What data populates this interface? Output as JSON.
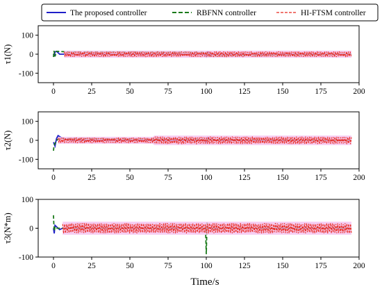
{
  "legend": {
    "entries": [
      {
        "label": "The proposed controller",
        "color": "#1f1fc8",
        "style": "solid"
      },
      {
        "label": "RBFNN controller",
        "color": "#1a7a1a",
        "style": "dashed"
      },
      {
        "label": "HI-FTSM controller",
        "color": "#e8261a",
        "style": "dashed"
      }
    ]
  },
  "chart_data": [
    {
      "type": "line",
      "ylabel": "τ1(N)",
      "xlim": [
        -10,
        200
      ],
      "ylim": [
        -150,
        150
      ],
      "xticks": [
        0,
        25,
        50,
        75,
        100,
        125,
        150,
        175,
        200
      ],
      "yticks": [
        -100,
        0,
        100
      ],
      "series": [
        {
          "name": "The proposed controller",
          "color": "#1f1fc8",
          "x": [
            0,
            0.5,
            1,
            2,
            3,
            4,
            99,
            100,
            101,
            102,
            103,
            104,
            195
          ],
          "y": [
            0,
            -12,
            12,
            15,
            8,
            0,
            0,
            -12,
            12,
            8,
            -5,
            0,
            0
          ]
        },
        {
          "name": "RBFNN controller",
          "color": "#1a7a1a",
          "x": [
            0,
            0.3,
            1,
            2,
            10,
            100,
            101,
            195
          ],
          "y": [
            -15,
            18,
            -12,
            15,
            12,
            10,
            -10,
            0
          ]
        },
        {
          "name": "HI-FTSM controller",
          "color": "#e8261a",
          "envelope": [
            [
              7,
              -15,
              15
            ],
            [
              195,
              -15,
              15
            ]
          ]
        }
      ]
    },
    {
      "type": "line",
      "ylabel": "τ2(N)",
      "xlim": [
        -10,
        200
      ],
      "ylim": [
        -150,
        150
      ],
      "xticks": [
        0,
        25,
        50,
        75,
        100,
        125,
        150,
        175,
        200
      ],
      "yticks": [
        -100,
        0,
        100
      ],
      "series": [
        {
          "name": "The proposed controller",
          "color": "#1f1fc8",
          "x": [
            0,
            1,
            2,
            3,
            5,
            8,
            12,
            99,
            100,
            101,
            103,
            106,
            195
          ],
          "y": [
            -10,
            -30,
            10,
            25,
            15,
            5,
            0,
            0,
            -10,
            15,
            5,
            0,
            0
          ]
        },
        {
          "name": "RBFNN controller",
          "color": "#1a7a1a",
          "x": [
            0,
            0.3,
            1,
            2,
            4,
            195
          ],
          "y": [
            -55,
            -30,
            -15,
            0,
            10,
            0
          ]
        },
        {
          "name": "HI-FTSM controller",
          "color": "#e8261a",
          "envelope": [
            [
              3,
              -15,
              15
            ],
            [
              65,
              -15,
              15
            ],
            [
              66,
              -20,
              20
            ],
            [
              195,
              -20,
              20
            ]
          ]
        }
      ]
    },
    {
      "type": "line",
      "ylabel": "τ3(N*m)",
      "xlim": [
        -10,
        200
      ],
      "ylim": [
        -100,
        100
      ],
      "xticks": [
        0,
        25,
        50,
        75,
        100,
        125,
        150,
        175,
        200
      ],
      "yticks": [
        -100,
        0,
        100
      ],
      "series": [
        {
          "name": "The proposed controller",
          "color": "#1f1fc8",
          "x": [
            0,
            0.5,
            1,
            2,
            4,
            6,
            195
          ],
          "y": [
            0,
            -18,
            10,
            5,
            -5,
            0,
            0
          ]
        },
        {
          "name": "RBFNN controller",
          "color": "#1a7a1a",
          "x": [
            0,
            0.2,
            0.5,
            1,
            2,
            99.5,
            100,
            100.5,
            101,
            195
          ],
          "y": [
            45,
            20,
            -10,
            5,
            0,
            0,
            -90,
            20,
            0,
            0
          ]
        },
        {
          "name": "HI-FTSM controller",
          "color": "#e8261a",
          "envelope": [
            [
              6,
              -18,
              18
            ],
            [
              195,
              -18,
              18
            ]
          ]
        }
      ]
    }
  ],
  "xlabel": "Time/s"
}
